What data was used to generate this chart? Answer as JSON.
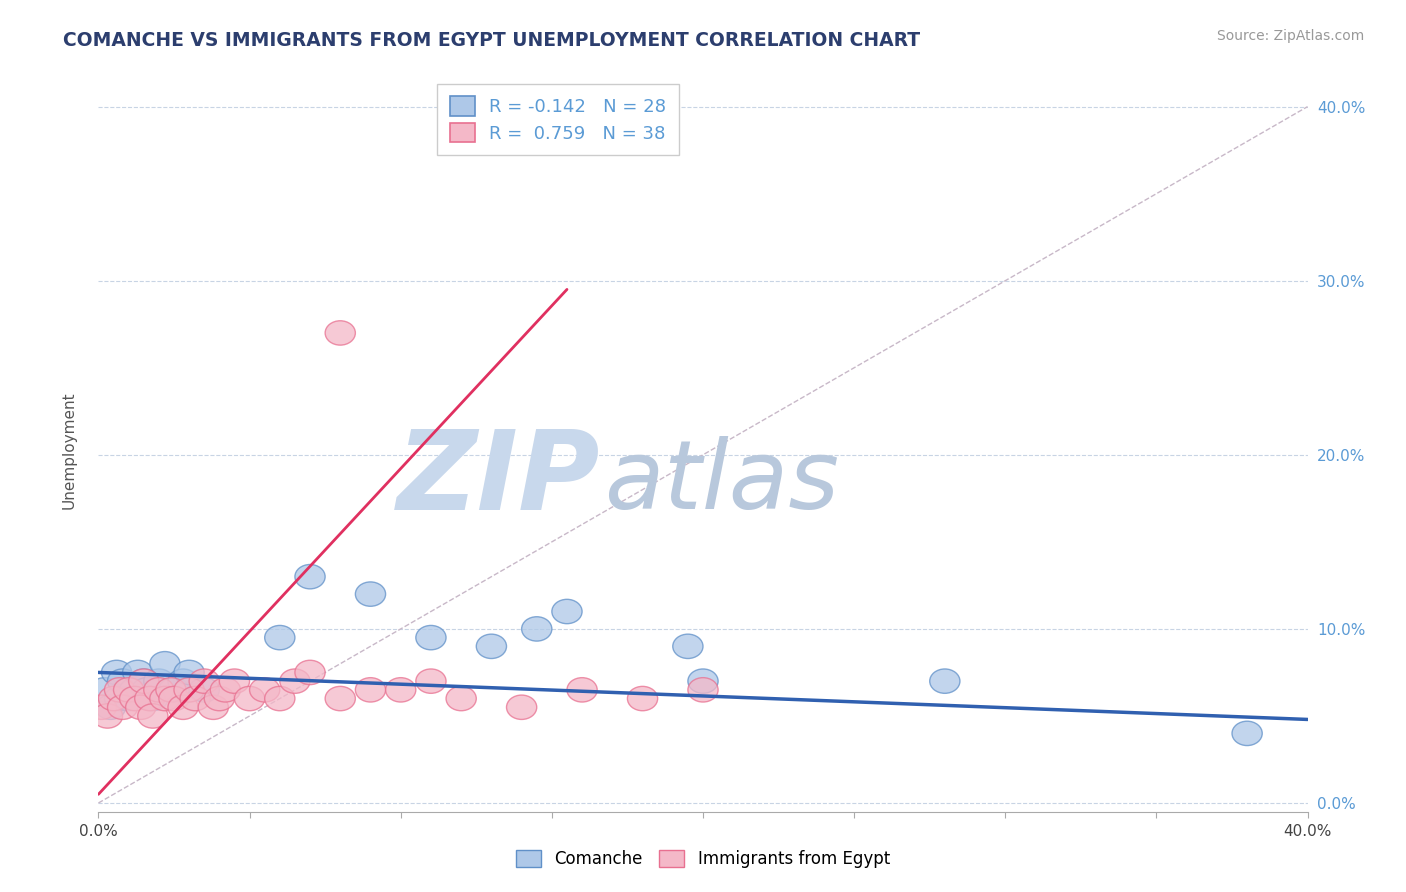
{
  "title": "COMANCHE VS IMMIGRANTS FROM EGYPT UNEMPLOYMENT CORRELATION CHART",
  "source_text": "Source: ZipAtlas.com",
  "ylabel": "Unemployment",
  "xmin": 0.0,
  "xmax": 0.4,
  "ymin": -0.005,
  "ymax": 0.41,
  "right_yticks": [
    0.0,
    0.1,
    0.2,
    0.3,
    0.4
  ],
  "right_yticklabels": [
    "0.0%",
    "10.0%",
    "20.0%",
    "30.0%",
    "40.0%"
  ],
  "xticks": [
    0.0,
    0.05,
    0.1,
    0.15,
    0.2,
    0.25,
    0.3,
    0.35,
    0.4
  ],
  "xticklabels": [
    "0.0%",
    "",
    "",
    "",
    "",
    "",
    "",
    "",
    "40.0%"
  ],
  "comanche_color": "#aec8e8",
  "egypt_color": "#f4b8c8",
  "comanche_edge": "#6090c8",
  "egypt_edge": "#e87090",
  "trend_blue": "#3060b0",
  "trend_pink": "#e03060",
  "diag_color": "#c8b8c8",
  "watermark_zip_color": "#c8d8ec",
  "watermark_atlas_color": "#b8c8dc",
  "watermark_text_zip": "ZIP",
  "watermark_text_atlas": "atlas",
  "legend_R_comanche": "-0.142",
  "legend_N_comanche": "28",
  "legend_R_egypt": "0.759",
  "legend_N_egypt": "38",
  "comanche_x": [
    0.002,
    0.004,
    0.006,
    0.007,
    0.008,
    0.01,
    0.012,
    0.013,
    0.015,
    0.016,
    0.018,
    0.02,
    0.022,
    0.025,
    0.028,
    0.03,
    0.035,
    0.06,
    0.07,
    0.09,
    0.11,
    0.13,
    0.145,
    0.155,
    0.195,
    0.2,
    0.28,
    0.38
  ],
  "comanche_y": [
    0.065,
    0.055,
    0.075,
    0.06,
    0.07,
    0.06,
    0.065,
    0.075,
    0.07,
    0.065,
    0.06,
    0.07,
    0.08,
    0.065,
    0.07,
    0.075,
    0.065,
    0.095,
    0.13,
    0.12,
    0.095,
    0.09,
    0.1,
    0.11,
    0.09,
    0.07,
    0.07,
    0.04
  ],
  "egypt_x": [
    0.001,
    0.003,
    0.005,
    0.007,
    0.008,
    0.01,
    0.012,
    0.014,
    0.015,
    0.017,
    0.018,
    0.02,
    0.022,
    0.024,
    0.025,
    0.028,
    0.03,
    0.032,
    0.035,
    0.038,
    0.04,
    0.042,
    0.045,
    0.05,
    0.055,
    0.06,
    0.065,
    0.07,
    0.08,
    0.09,
    0.1,
    0.11,
    0.12,
    0.14,
    0.16,
    0.18,
    0.2,
    0.08
  ],
  "egypt_y": [
    0.055,
    0.05,
    0.06,
    0.065,
    0.055,
    0.065,
    0.06,
    0.055,
    0.07,
    0.06,
    0.05,
    0.065,
    0.06,
    0.065,
    0.06,
    0.055,
    0.065,
    0.06,
    0.07,
    0.055,
    0.06,
    0.065,
    0.07,
    0.06,
    0.065,
    0.06,
    0.07,
    0.075,
    0.06,
    0.065,
    0.065,
    0.07,
    0.06,
    0.055,
    0.065,
    0.06,
    0.065,
    0.27
  ],
  "blue_trend_x": [
    0.0,
    0.4
  ],
  "blue_trend_y": [
    0.075,
    0.048
  ],
  "pink_trend_x": [
    0.0,
    0.155
  ],
  "pink_trend_y": [
    0.005,
    0.295
  ],
  "background_color": "#ffffff",
  "grid_color": "#c8d4e4",
  "title_color": "#2c3e6e",
  "figsize": [
    14.06,
    8.92
  ],
  "dpi": 100
}
